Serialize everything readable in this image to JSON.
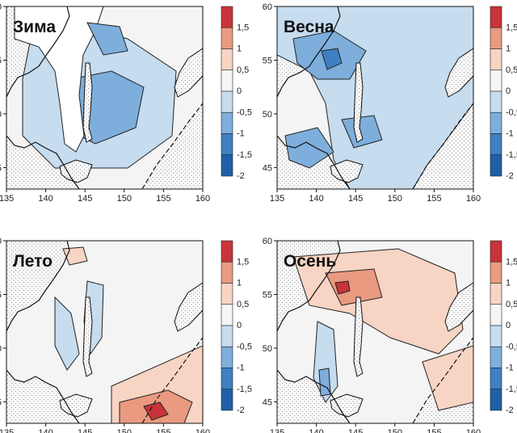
{
  "panels": [
    {
      "season": "Зима",
      "pattern": "winter"
    },
    {
      "season": "Весна",
      "pattern": "spring"
    },
    {
      "season": "Лето",
      "pattern": "summer"
    },
    {
      "season": "Осень",
      "pattern": "autumn"
    }
  ],
  "x_ticks": [
    "135",
    "140",
    "145",
    "150",
    "155",
    "160"
  ],
  "y_ticks": [
    "45",
    "50",
    "55",
    "60"
  ],
  "colorbar": {
    "labels": [
      "-2",
      "-1,5",
      "-1",
      "-0,5",
      "0",
      "0,5",
      "1",
      "1,5"
    ],
    "colors": [
      "#1f5fa8",
      "#3f80c2",
      "#7eaedb",
      "#c6dcef",
      "#f5f5f5",
      "#f8d4c4",
      "#e99a80",
      "#c8343a"
    ]
  },
  "colors": {
    "land": "#f4f4f4",
    "ice": "#ffffff",
    "blue_light": "#c6dcef",
    "blue_mid": "#7eaedb",
    "blue_dark": "#3f80c2",
    "red_light": "#f8d4c4",
    "red_mid": "#e99a80",
    "red_dark": "#c8343a"
  }
}
